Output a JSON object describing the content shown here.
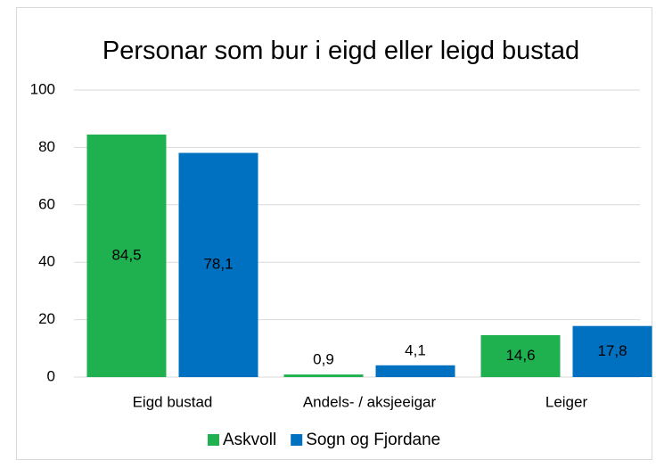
{
  "chart_data": {
    "type": "bar",
    "title": "Personar som bur i eigd eller leigd bustad",
    "categories": [
      "Eigd bustad",
      "Andels- / aksjeeigar",
      "Leiger"
    ],
    "series": [
      {
        "name": "Askvoll",
        "color": "#1fb14f",
        "values": [
          84.5,
          0.9,
          14.6
        ],
        "value_labels": [
          "84,5",
          "0,9",
          "14,6"
        ]
      },
      {
        "name": "Sogn og Fjordane",
        "color": "#0070c0",
        "values": [
          78.1,
          4.1,
          17.8
        ],
        "value_labels": [
          "78,1",
          "4,1",
          "17,8"
        ]
      }
    ],
    "ylim": [
      0,
      100
    ],
    "yticks": [
      0,
      20,
      40,
      60,
      80,
      100
    ],
    "grid": true,
    "legend": "bottom"
  }
}
